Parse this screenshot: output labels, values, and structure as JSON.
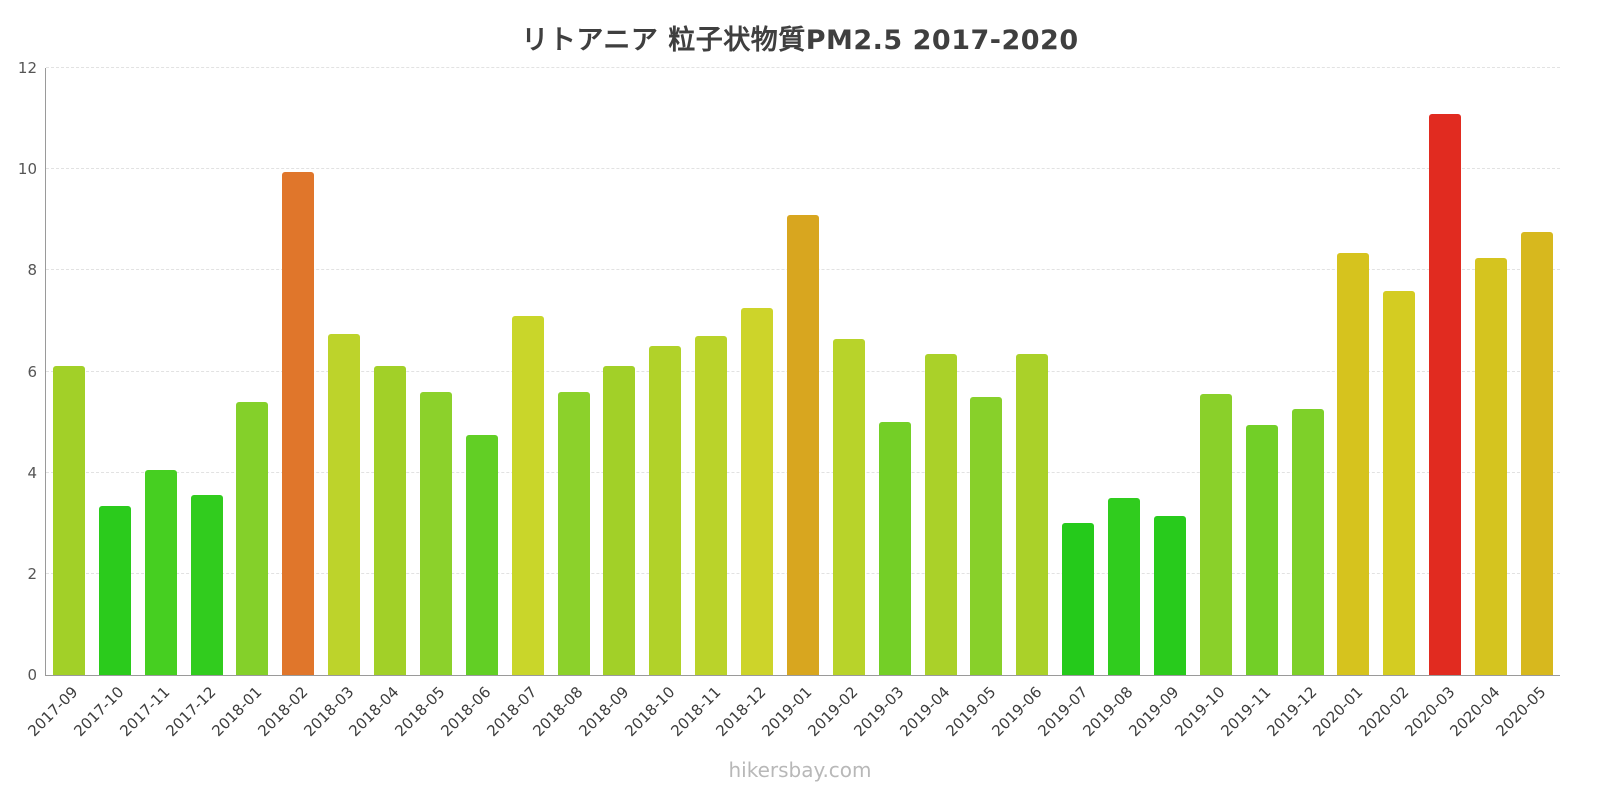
{
  "title": "リトアニア 粒子状物質PM2.5 2017-2020",
  "watermark": "hikersbay.com",
  "chart_data": {
    "type": "bar",
    "title": "リトアニア 粒子状物質PM2.5 2017-2020",
    "xlabel": "",
    "ylabel": "",
    "ylim": [
      0,
      12
    ],
    "yticks": [
      0,
      2,
      4,
      6,
      8,
      10,
      12
    ],
    "grid": true,
    "legend_position": "none",
    "categories": [
      "2017-09",
      "2017-10",
      "2017-11",
      "2017-12",
      "2018-01",
      "2018-02",
      "2018-03",
      "2018-04",
      "2018-05",
      "2018-06",
      "2018-07",
      "2018-08",
      "2018-09",
      "2018-10",
      "2018-11",
      "2018-12",
      "2019-01",
      "2019-02",
      "2019-03",
      "2019-04",
      "2019-05",
      "2019-06",
      "2019-07",
      "2019-08",
      "2019-09",
      "2019-10",
      "2019-11",
      "2019-12",
      "2020-01",
      "2020-02",
      "2020-03",
      "2020-04",
      "2020-05"
    ],
    "values": [
      6.1,
      3.35,
      4.05,
      3.55,
      5.4,
      9.95,
      6.75,
      6.1,
      5.6,
      4.75,
      7.1,
      5.6,
      6.1,
      6.5,
      6.7,
      7.25,
      9.1,
      6.65,
      5.0,
      6.35,
      5.5,
      6.35,
      3.0,
      3.5,
      3.15,
      5.55,
      4.95,
      5.25,
      8.35,
      7.6,
      11.1,
      8.25,
      8.75
    ],
    "bar_colors": [
      "#a2d028",
      "#2bcb1c",
      "#46cf21",
      "#31cc1e",
      "#84d02a",
      "#e0762b",
      "#bdd32b",
      "#a2d028",
      "#8cd12b",
      "#62cf25",
      "#c9d62a",
      "#8cd12b",
      "#a2d028",
      "#b1d229",
      "#bad32a",
      "#cdd42a",
      "#d8a61f",
      "#b8d32a",
      "#74cf27",
      "#aad129",
      "#88d02a",
      "#aad129",
      "#25ca1b",
      "#30cc1e",
      "#28cb1c",
      "#8ad02a",
      "#72cf27",
      "#7ed029",
      "#d6c31e",
      "#d4cc22",
      "#e12b20",
      "#d5c41f",
      "#d7b81e"
    ]
  },
  "colors": {
    "axis": "#9a9a9a",
    "grid": "#e2e2e2",
    "title_text": "#3f3f3f",
    "tick_text": "#555555",
    "x_label_text": "#3c3c3c",
    "watermark_text": "#b8b8b8",
    "background": "#ffffff"
  }
}
